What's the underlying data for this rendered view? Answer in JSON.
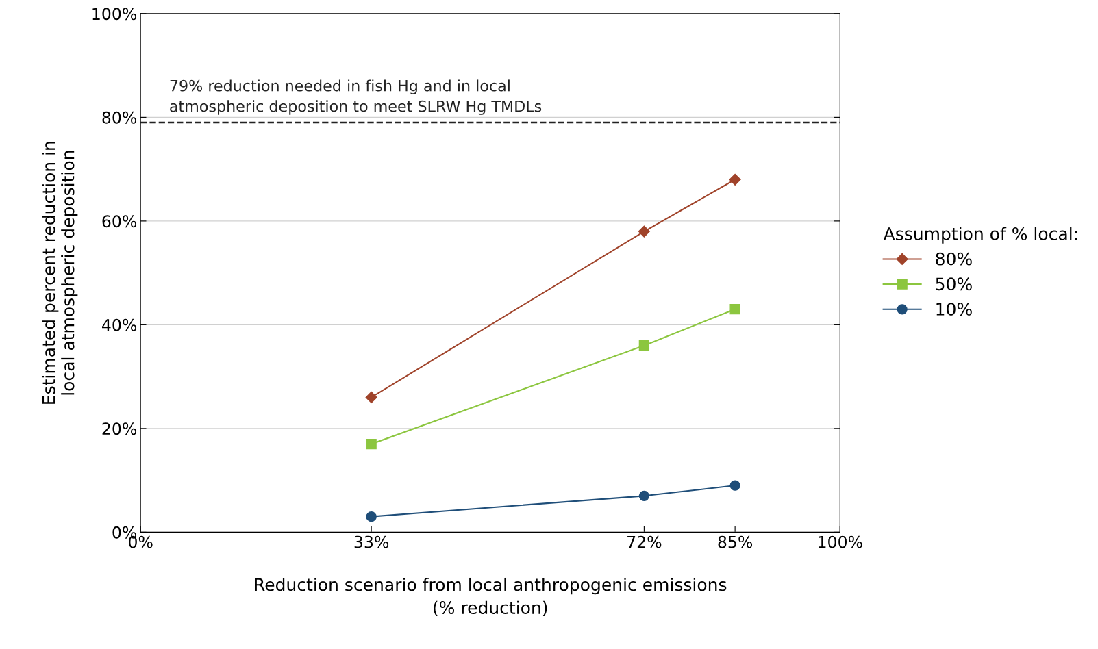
{
  "chart_data": {
    "type": "line",
    "xlabel": "Reduction scenario from local anthropogenic emissions\n(% reduction)",
    "ylabel": "Estimated percent reduction in\nlocal atmospheric deposition",
    "legend_title": "Assumption of % local:",
    "x": [
      33,
      72,
      85
    ],
    "series": [
      {
        "name": "80%",
        "color": "#a0432a",
        "marker": "diamond",
        "values": [
          26,
          58,
          68
        ]
      },
      {
        "name": "50%",
        "color": "#8cc63f",
        "marker": "square",
        "values": [
          17,
          36,
          43
        ]
      },
      {
        "name": "10%",
        "color": "#1f4e79",
        "marker": "circle",
        "values": [
          3,
          7,
          9
        ]
      }
    ],
    "xlim": [
      0,
      100
    ],
    "xticks": [
      {
        "value": 0,
        "label": "0%"
      },
      {
        "value": 33,
        "label": "33%"
      },
      {
        "value": 72,
        "label": "72%"
      },
      {
        "value": 85,
        "label": "85%"
      },
      {
        "value": 100,
        "label": "100%"
      }
    ],
    "ylim": [
      0,
      100
    ],
    "yticks": [
      {
        "value": 0,
        "label": "0%"
      },
      {
        "value": 20,
        "label": "20%"
      },
      {
        "value": 40,
        "label": "40%"
      },
      {
        "value": 60,
        "label": "60%"
      },
      {
        "value": 80,
        "label": "80%"
      },
      {
        "value": 100,
        "label": "100%"
      }
    ],
    "ref_lines": [
      {
        "axis": "y",
        "value": 79,
        "label": "79% reduction needed in fish Hg and in local\natmospheric deposition to meet SLRW Hg TMDLs",
        "color": "#222222",
        "line_style": "dashed"
      }
    ],
    "grid": "y",
    "legend": "right",
    "line_style": "solid"
  }
}
